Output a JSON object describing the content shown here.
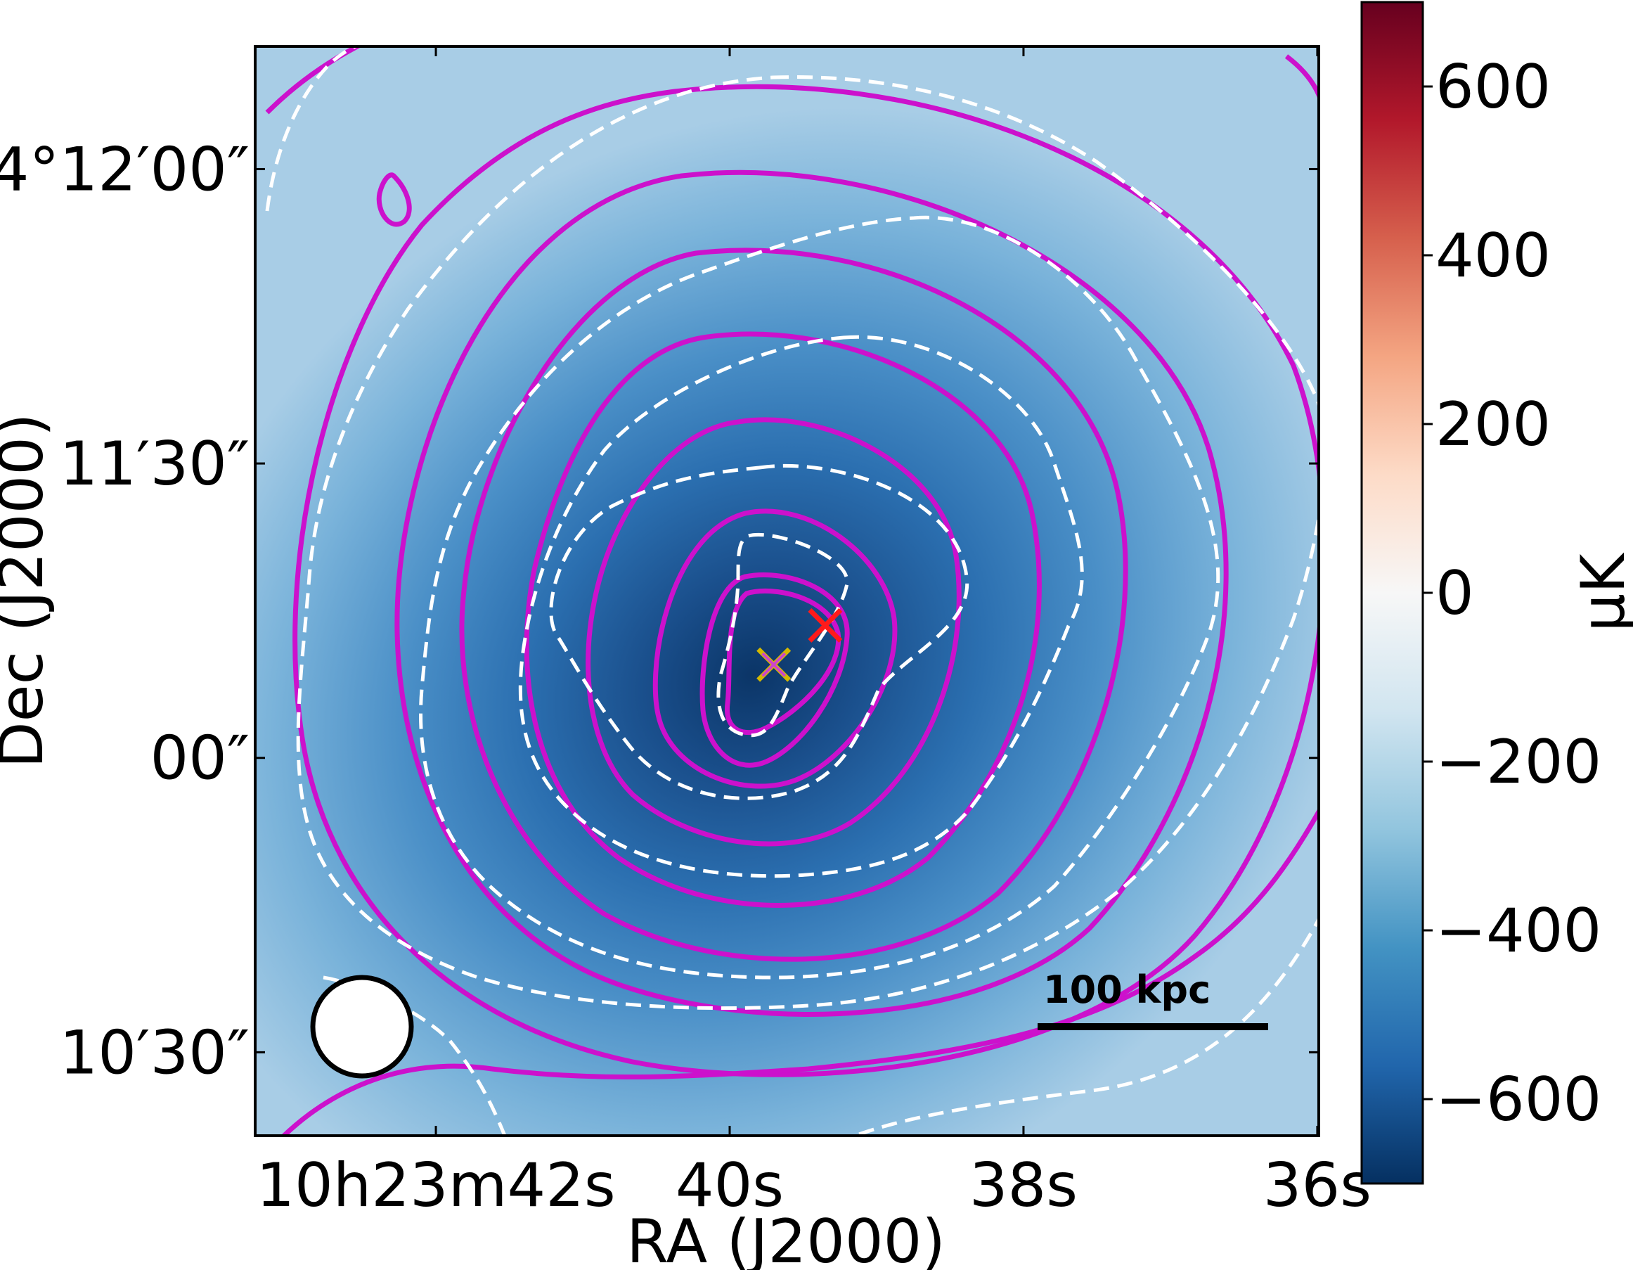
{
  "chart_data": {
    "type": "heatmap",
    "title": "",
    "xlabel": "RA (J2000)",
    "ylabel": "Dec (J2000)",
    "x_ticks": [
      {
        "label": "10h23m42s",
        "ra_s": 42
      },
      {
        "label": "40s",
        "ra_s": 40
      },
      {
        "label": "38s",
        "ra_s": 38
      },
      {
        "label": "36s",
        "ra_s": 36
      }
    ],
    "y_ticks": [
      {
        "label": "4°12′00″",
        "dec_arcsec": 120
      },
      {
        "label": "11′30″",
        "dec_arcsec": 90
      },
      {
        "label": "00″",
        "dec_arcsec": 60
      },
      {
        "label": "10′30″",
        "dec_arcsec": 30
      }
    ],
    "x_range_ra_s": [
      43.23,
      35.99
    ],
    "y_range_dec_arcsec": [
      21.5,
      132.5
    ],
    "y_range_note": "Dec offset in arcsec from 4°10′00″",
    "colorbar": {
      "label": "μK",
      "ticks": [
        600,
        400,
        200,
        0,
        -200,
        -400,
        -600
      ],
      "tick_labels": [
        "600",
        "400",
        "200",
        "0",
        "−200",
        "−400",
        "−600"
      ],
      "range": [
        -700,
        700
      ],
      "colormap": "RdBu_r",
      "colors": [
        "#053061",
        "#2166ac",
        "#4393c3",
        "#92c5de",
        "#d1e5f0",
        "#f7f7f7",
        "#fddbc7",
        "#f4a582",
        "#d6604d",
        "#b2182b",
        "#67001f"
      ]
    },
    "image_peak": {
      "value_uK": -680,
      "ra_s": 39.6,
      "dec_arcsec": 69
    },
    "image_background_uK": -240,
    "markers": [
      {
        "kind": "cross",
        "color": "#ff1a1a",
        "ra_s": 39.35,
        "dec_arcsec": 73.5
      },
      {
        "kind": "cross",
        "color": "#d4b800",
        "ra_s": 39.7,
        "dec_arcsec": 69.5
      },
      {
        "kind": "cross",
        "color": "#cc44cc",
        "ra_s": 39.7,
        "dec_arcsec": 69.5
      }
    ],
    "beam": {
      "shape": "circle",
      "fill": "#ffffff",
      "edge": "#000000",
      "ra_s": 42.48,
      "dec_arcsec": 31.5
    },
    "scale_bar": {
      "label": "100 kpc",
      "ra_from_s": 37.97,
      "ra_to_s": 36.4,
      "dec_arcsec": 33.5
    },
    "contours": {
      "solid_color": "#cc11cc",
      "dashed_color": "#ffffff",
      "solid_levels": 9,
      "dashed_levels": 6
    }
  },
  "colors": {
    "frame": "#000000",
    "background": "#ffffff"
  }
}
